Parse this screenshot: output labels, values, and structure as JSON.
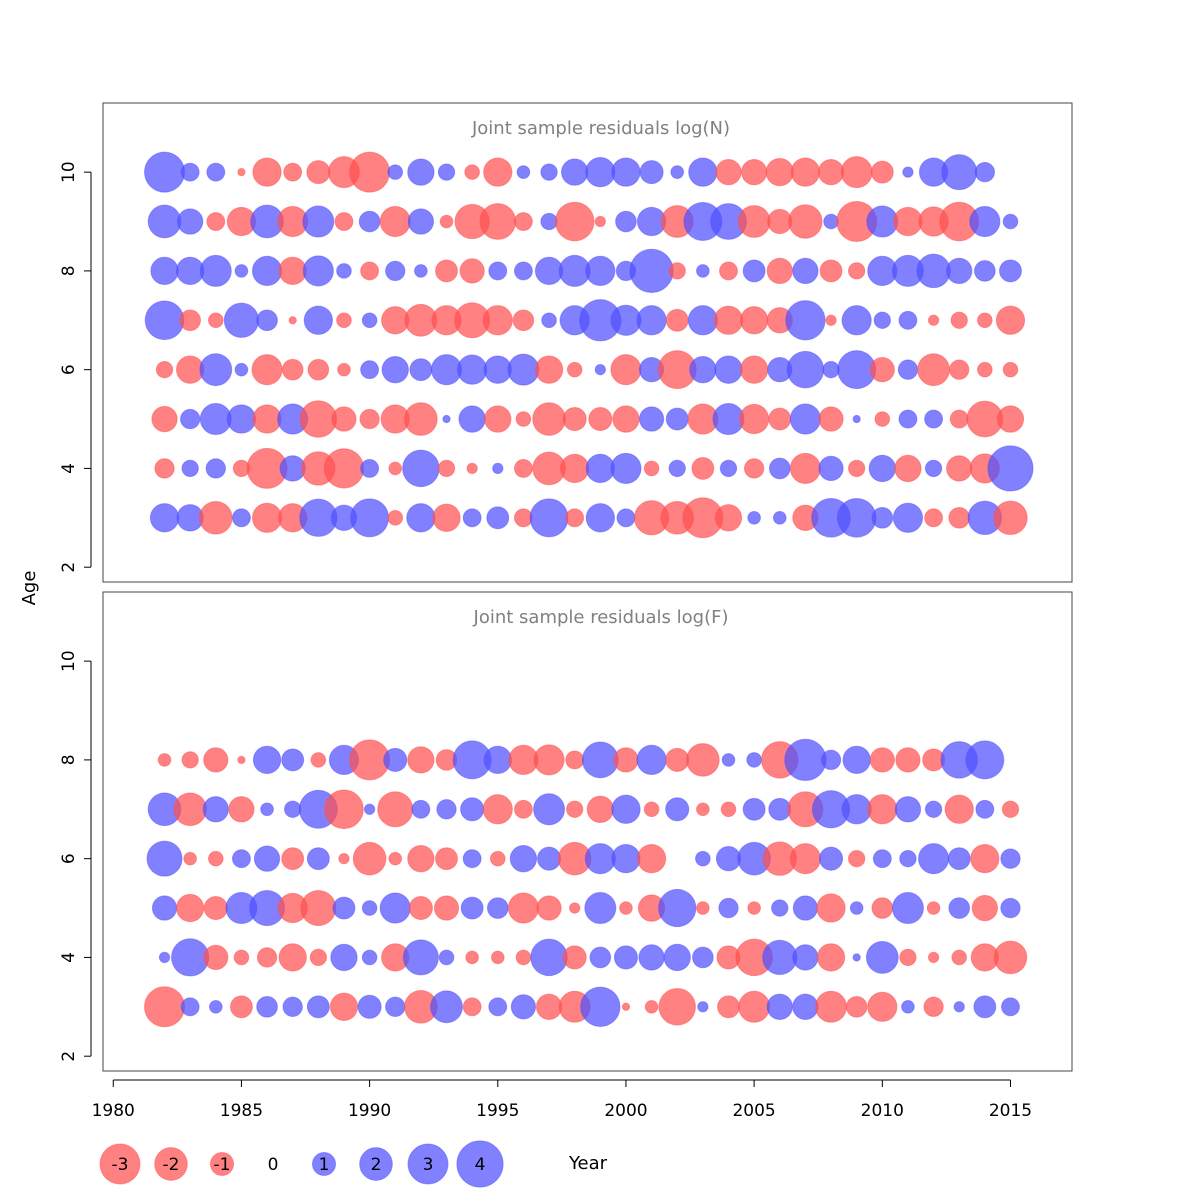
{
  "chart_data": {
    "type": "scatter",
    "subtype": "bubble",
    "xlabel": "Year",
    "ylabel": "Age",
    "x_ticks": [
      1980,
      1985,
      1990,
      1995,
      2000,
      2005,
      2010,
      2015
    ],
    "xlim": [
      1979.6,
      2017.4
    ],
    "y_ticks": [
      2,
      4,
      6,
      8,
      10
    ],
    "ylim": [
      1.7,
      11.4
    ],
    "years": [
      1982,
      1983,
      1984,
      1985,
      1986,
      1987,
      1988,
      1989,
      1990,
      1991,
      1992,
      1993,
      1994,
      1995,
      1996,
      1997,
      1998,
      1999,
      2000,
      2001,
      2002,
      2003,
      2004,
      2005,
      2006,
      2007,
      2008,
      2009,
      2010,
      2011,
      2012,
      2013,
      2014,
      2015
    ],
    "colors": {
      "positive": "#5050ff",
      "negative": "#ff5050"
    },
    "size_legend": {
      "values": [
        -3,
        -2,
        -1,
        0,
        1,
        2,
        3,
        4
      ],
      "labels": [
        "-3",
        "-2",
        "-1",
        "0",
        "1",
        "2",
        "3",
        "4"
      ]
    },
    "panels": [
      {
        "title": "Joint sample residuals log(N)",
        "ages": [
          3,
          4,
          5,
          6,
          7,
          8,
          9,
          10
        ],
        "residuals": {
          "10": [
            3.0,
            0.6,
            0.6,
            -0.1,
            -1.5,
            -0.6,
            -1.0,
            -1.8,
            -3.0,
            0.4,
            1.3,
            0.5,
            -0.4,
            -1.5,
            0.3,
            0.5,
            1.3,
            1.6,
            1.5,
            1.0,
            0.3,
            1.5,
            -1.2,
            -1.2,
            -1.4,
            -1.5,
            -1.2,
            -1.8,
            -0.9,
            0.2,
            1.5,
            2.3,
            0.7
          ],
          "9": [
            2.0,
            1.2,
            -0.6,
            -1.5,
            2.0,
            -1.7,
            1.8,
            -0.6,
            0.8,
            -1.7,
            1.2,
            -0.3,
            -2.2,
            -2.4,
            -0.6,
            0.5,
            -2.8,
            -0.2,
            0.8,
            1.5,
            -1.9,
            2.7,
            2.4,
            -1.9,
            -1.1,
            -2.1,
            0.4,
            -3.0,
            1.8,
            -1.5,
            -1.6,
            -2.8,
            1.7,
            0.4
          ],
          "8": [
            1.4,
            1.4,
            1.8,
            0.3,
            1.6,
            -1.4,
            1.7,
            0.4,
            -0.6,
            0.7,
            0.3,
            -0.9,
            -1.1,
            0.6,
            0.6,
            1.4,
            1.8,
            1.6,
            0.7,
            3.5,
            -0.5,
            0.3,
            -0.6,
            0.9,
            -1.2,
            1.2,
            -0.9,
            -0.5,
            1.6,
            1.8,
            2.1,
            1.2,
            0.8,
            0.9
          ],
          "7": [
            2.8,
            -0.8,
            -0.4,
            2.2,
            0.8,
            -0.1,
            1.5,
            -0.4,
            0.4,
            -1.4,
            -1.9,
            -1.6,
            -2.3,
            -1.6,
            -0.8,
            0.4,
            1.6,
            3.2,
            1.7,
            1.6,
            -0.9,
            1.6,
            -1.5,
            -1.4,
            -1.2,
            2.9,
            -0.2,
            1.6,
            0.5,
            0.6,
            -0.2,
            -0.5,
            -0.4,
            -1.5
          ],
          "6": [
            -0.5,
            -1.4,
            1.9,
            0.3,
            -1.7,
            -0.8,
            -0.8,
            -0.3,
            0.6,
            1.3,
            0.9,
            1.7,
            1.6,
            1.4,
            1.8,
            -1.4,
            -0.4,
            0.2,
            -1.7,
            1.1,
            -2.7,
            1.3,
            1.4,
            -1.4,
            1.1,
            2.5,
            0.5,
            2.7,
            -1.1,
            0.7,
            -1.9,
            -0.7,
            -0.4,
            -0.4
          ],
          "5": [
            -1.2,
            0.7,
            1.8,
            1.5,
            -1.5,
            1.7,
            -2.5,
            -1.1,
            -0.7,
            -1.5,
            -2.0,
            0.1,
            1.3,
            -1.3,
            -0.4,
            -2.0,
            -1.0,
            -1.0,
            -1.3,
            1.1,
            0.9,
            -1.7,
            1.8,
            -1.6,
            -0.9,
            1.7,
            -1.1,
            0.1,
            -0.4,
            0.6,
            0.6,
            -0.6,
            -2.4,
            -1.3
          ],
          "4": [
            -0.7,
            0.5,
            0.7,
            -0.5,
            -3.0,
            1.2,
            -2.1,
            -2.9,
            0.6,
            -0.3,
            2.5,
            -0.5,
            -0.2,
            0.2,
            -0.6,
            -2.0,
            -1.5,
            1.5,
            1.7,
            -0.4,
            0.5,
            -0.9,
            0.5,
            -0.7,
            0.8,
            -1.7,
            1.1,
            -0.5,
            1.3,
            -1.3,
            0.5,
            -1.2,
            -1.6,
            3.8
          ],
          "3": [
            1.5,
            1.3,
            -2.0,
            0.6,
            -1.6,
            -1.5,
            2.6,
            1.2,
            2.7,
            -0.4,
            1.5,
            -1.4,
            0.6,
            0.9,
            -0.6,
            2.7,
            -0.6,
            1.5,
            0.6,
            -2.2,
            -2.0,
            -3.0,
            -1.3,
            0.3,
            0.3,
            -1.2,
            2.8,
            2.8,
            0.8,
            1.6,
            -0.6,
            -0.8,
            2.1,
            -2.1
          ]
        }
      },
      {
        "title": "Joint sample residuals log(F)",
        "ages": [
          3,
          4,
          5,
          6,
          7,
          8
        ],
        "residuals": {
          "8": [
            -0.3,
            -0.5,
            -1.1,
            -0.1,
            1.4,
            0.9,
            -0.4,
            1.6,
            -3.0,
            1.0,
            -1.3,
            -0.8,
            2.7,
            1.4,
            -1.6,
            -1.7,
            -0.6,
            2.4,
            -1.1,
            1.6,
            -1.0,
            -2.0,
            0.3,
            0.4,
            -2.5,
            3.2,
            0.7,
            1.4,
            -1.1,
            -1.1,
            -0.9,
            2.5,
            2.7
          ],
          "7": [
            2.0,
            -2.0,
            1.2,
            -1.2,
            0.3,
            0.5,
            2.7,
            -2.8,
            0.2,
            -2.3,
            0.6,
            0.7,
            1.0,
            -1.6,
            -0.6,
            1.8,
            -0.5,
            -1.3,
            1.5,
            -0.4,
            1.0,
            -0.3,
            -0.4,
            0.9,
            0.9,
            -2.3,
            2.6,
            1.6,
            -1.6,
            1.2,
            0.5,
            -1.5,
            0.6,
            -0.5
          ],
          "6": [
            2.3,
            -0.3,
            -0.4,
            0.6,
            1.2,
            -0.9,
            0.9,
            -0.2,
            -2.0,
            -0.3,
            -1.3,
            -0.9,
            0.6,
            -0.4,
            1.3,
            1.0,
            -2.0,
            1.7,
            1.5,
            -1.5,
            0.0,
            0.4,
            1.1,
            2.0,
            -2.1,
            -1.7,
            1.0,
            -0.5,
            0.6,
            0.5,
            1.7,
            0.9,
            -1.5,
            0.7
          ],
          "5": [
            1.1,
            -1.4,
            -1.0,
            1.8,
            2.3,
            -1.6,
            -2.3,
            0.9,
            0.4,
            1.7,
            -1.0,
            -1.1,
            0.9,
            0.8,
            -1.7,
            -1.1,
            -0.2,
            1.8,
            -0.3,
            -1.3,
            2.6,
            -0.3,
            0.7,
            -0.3,
            0.5,
            1.1,
            -1.5,
            0.3,
            -0.8,
            1.8,
            -0.3,
            0.8,
            -1.2,
            0.7
          ],
          "4": [
            0.2,
            2.6,
            -1.1,
            -0.4,
            -0.7,
            -1.4,
            -0.5,
            1.3,
            0.4,
            -1.4,
            2.3,
            0.4,
            -0.3,
            -0.3,
            -0.4,
            2.5,
            -1.0,
            0.8,
            1.0,
            1.2,
            1.3,
            0.8,
            -1.0,
            -2.5,
            2.2,
            1.2,
            -1.4,
            0.1,
            1.9,
            -0.5,
            -0.2,
            -0.4,
            -1.4,
            -2.0
          ],
          "3": [
            -3.0,
            0.6,
            0.3,
            -0.9,
            0.8,
            0.7,
            0.9,
            -1.4,
            1.0,
            0.7,
            -2.0,
            1.9,
            -0.6,
            0.6,
            1.1,
            -1.2,
            -1.8,
            2.9,
            -0.1,
            -0.3,
            -2.5,
            0.2,
            -0.9,
            -1.8,
            1.2,
            1.2,
            -1.8,
            -0.8,
            -1.6,
            0.3,
            -0.7,
            0.2,
            0.9,
            0.6
          ]
        }
      }
    ]
  }
}
